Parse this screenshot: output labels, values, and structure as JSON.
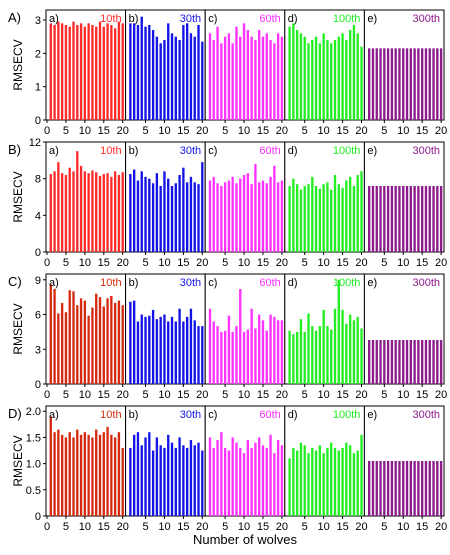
{
  "xlabel": "Number of wolves",
  "ylabel": "RMSECV",
  "chart_data": [
    {
      "type": "bar",
      "row_label": "A)",
      "ylabel": "RMSECV",
      "ylim": [
        0,
        3.3
      ],
      "yticks": [
        0,
        1,
        2,
        3
      ],
      "x": [
        1,
        2,
        3,
        4,
        5,
        6,
        7,
        8,
        9,
        10,
        11,
        12,
        13,
        14,
        15,
        16,
        17,
        18,
        19,
        20
      ],
      "xticks": [
        0,
        5,
        10,
        15,
        20
      ],
      "panels": [
        {
          "label": "a)",
          "iteration": "10th",
          "color": "#ff2a2a",
          "values": [
            2.9,
            2.85,
            2.95,
            2.9,
            2.85,
            2.8,
            2.95,
            2.85,
            2.9,
            2.8,
            2.9,
            2.85,
            2.8,
            2.95,
            2.8,
            2.9,
            2.85,
            2.75,
            2.95,
            2.9
          ]
        },
        {
          "label": "b)",
          "iteration": "30th",
          "color": "#1414e6",
          "values": [
            2.9,
            2.9,
            2.85,
            3.1,
            2.8,
            2.85,
            2.7,
            2.5,
            2.3,
            2.4,
            2.9,
            2.6,
            2.5,
            2.4,
            2.85,
            2.9,
            2.6,
            2.5,
            2.85,
            2.35
          ]
        },
        {
          "label": "c)",
          "iteration": "60th",
          "color": "#ff33ff",
          "values": [
            2.6,
            2.4,
            2.8,
            2.3,
            2.5,
            2.6,
            2.3,
            2.8,
            2.5,
            2.9,
            2.7,
            2.5,
            2.4,
            2.7,
            2.5,
            2.6,
            2.4,
            2.3,
            2.6,
            2.5
          ]
        },
        {
          "label": "d)",
          "iteration": "100th",
          "color": "#22ee22",
          "values": [
            2.8,
            2.9,
            2.7,
            2.6,
            2.5,
            2.3,
            2.4,
            2.5,
            2.3,
            2.6,
            2.4,
            2.3,
            2.4,
            2.5,
            2.6,
            2.4,
            2.7,
            2.85,
            2.6,
            2.2
          ]
        },
        {
          "label": "e)",
          "iteration": "300th",
          "color": "#8b1a8b",
          "values": [
            2.15,
            2.15,
            2.15,
            2.15,
            2.15,
            2.15,
            2.15,
            2.15,
            2.15,
            2.15,
            2.15,
            2.15,
            2.15,
            2.15,
            2.15,
            2.15,
            2.15,
            2.15,
            2.15,
            2.15
          ]
        }
      ]
    },
    {
      "type": "bar",
      "row_label": "B)",
      "ylabel": "RMSECV",
      "ylim": [
        0,
        12
      ],
      "yticks": [
        0,
        4,
        8,
        12
      ],
      "x": [
        1,
        2,
        3,
        4,
        5,
        6,
        7,
        8,
        9,
        10,
        11,
        12,
        13,
        14,
        15,
        16,
        17,
        18,
        19,
        20
      ],
      "xticks": [
        0,
        5,
        10,
        15,
        20
      ],
      "panels": [
        {
          "label": "a)",
          "iteration": "10th",
          "color": "#ff2a2a",
          "values": [
            8.5,
            8.8,
            9.8,
            8.6,
            8.4,
            9.2,
            8.8,
            11.0,
            9.4,
            8.8,
            8.6,
            8.9,
            8.7,
            8.3,
            8.5,
            8.6,
            8.2,
            8.8,
            8.4,
            8.7
          ]
        },
        {
          "label": "b)",
          "iteration": "30th",
          "color": "#1414e6",
          "values": [
            8.5,
            9.0,
            7.8,
            8.8,
            8.2,
            8.0,
            7.5,
            8.6,
            7.2,
            8.8,
            8.0,
            7.2,
            7.5,
            8.4,
            9.2,
            7.6,
            8.2,
            7.6,
            7.4,
            9.8
          ]
        },
        {
          "label": "c)",
          "iteration": "60th",
          "color": "#ff33ff",
          "values": [
            7.8,
            8.2,
            7.5,
            7.2,
            7.6,
            7.8,
            8.2,
            7.5,
            8.0,
            8.4,
            8.6,
            7.4,
            9.6,
            7.6,
            7.8,
            7.5,
            8.2,
            9.4,
            7.6,
            7.8
          ]
        },
        {
          "label": "d)",
          "iteration": "100th",
          "color": "#22ee22",
          "values": [
            7.2,
            8.0,
            7.4,
            6.8,
            7.2,
            7.4,
            8.2,
            7.2,
            6.9,
            7.4,
            7.6,
            6.8,
            8.4,
            7.4,
            7.0,
            7.8,
            8.2,
            7.2,
            8.4,
            8.8
          ]
        },
        {
          "label": "e)",
          "iteration": "300th",
          "color": "#8b1a8b",
          "values": [
            7.2,
            7.2,
            7.2,
            7.2,
            7.2,
            7.2,
            7.2,
            7.2,
            7.2,
            7.2,
            7.2,
            7.2,
            7.2,
            7.2,
            7.2,
            7.2,
            7.2,
            7.2,
            7.2,
            7.2
          ]
        }
      ]
    },
    {
      "type": "bar",
      "row_label": "C)",
      "ylabel": "RMSECV",
      "ylim": [
        0,
        9.5
      ],
      "yticks": [
        0,
        3,
        6,
        9
      ],
      "x": [
        1,
        2,
        3,
        4,
        5,
        6,
        7,
        8,
        9,
        10,
        11,
        12,
        13,
        14,
        15,
        16,
        17,
        18,
        19,
        20
      ],
      "xticks": [
        0,
        5,
        10,
        15,
        20
      ],
      "panels": [
        {
          "label": "a)",
          "iteration": "10th",
          "color": "#d42a10",
          "values": [
            8.6,
            8.2,
            6.1,
            7.0,
            6.2,
            8.1,
            8.0,
            6.8,
            7.4,
            7.2,
            5.9,
            6.6,
            7.8,
            7.5,
            6.7,
            7.4,
            7.6,
            7.0,
            7.2,
            6.8
          ]
        },
        {
          "label": "b)",
          "iteration": "30th",
          "color": "#1414e6",
          "values": [
            7.1,
            7.2,
            5.4,
            6.0,
            5.8,
            5.9,
            6.4,
            5.6,
            5.8,
            6.0,
            5.4,
            5.8,
            5.4,
            6.5,
            5.4,
            5.8,
            6.5,
            5.5,
            5.0,
            5.0
          ]
        },
        {
          "label": "c)",
          "iteration": "60th",
          "color": "#ff33ff",
          "values": [
            6.5,
            5.4,
            5.0,
            4.5,
            4.6,
            5.9,
            4.5,
            5.0,
            8.2,
            4.5,
            4.7,
            6.5,
            4.8,
            6.0,
            5.5,
            4.6,
            6.0,
            5.8,
            5.5,
            5.5
          ]
        },
        {
          "label": "d)",
          "iteration": "100th",
          "color": "#22ee22",
          "values": [
            4.6,
            4.3,
            4.5,
            5.6,
            4.5,
            6.1,
            5.0,
            4.6,
            5.0,
            6.4,
            5.0,
            4.7,
            6.5,
            9.0,
            6.4,
            5.2,
            6.0,
            5.5,
            5.8,
            4.8
          ]
        },
        {
          "label": "e)",
          "iteration": "300th",
          "color": "#8b1a8b",
          "values": [
            3.8,
            3.8,
            3.8,
            3.8,
            3.8,
            3.8,
            3.8,
            3.8,
            3.8,
            3.8,
            3.8,
            3.8,
            3.8,
            3.8,
            3.8,
            3.8,
            3.8,
            3.8,
            3.8,
            3.8
          ]
        }
      ]
    },
    {
      "type": "bar",
      "row_label": "D)",
      "ylabel": "RMSECV",
      "ylim": [
        0,
        2.1
      ],
      "yticks": [
        0,
        0.5,
        1.0,
        1.5,
        2.0
      ],
      "ytick_labels": [
        "0",
        "0.5",
        "1.0",
        "1.5",
        "2.0"
      ],
      "x": [
        1,
        2,
        3,
        4,
        5,
        6,
        7,
        8,
        9,
        10,
        11,
        12,
        13,
        14,
        15,
        16,
        17,
        18,
        19,
        20
      ],
      "xticks": [
        0,
        5,
        10,
        15,
        20
      ],
      "panels": [
        {
          "label": "a)",
          "iteration": "10th",
          "color": "#d42a10",
          "values": [
            1.9,
            1.6,
            1.65,
            1.55,
            1.5,
            1.6,
            1.5,
            1.65,
            1.55,
            1.6,
            1.55,
            1.5,
            1.65,
            1.55,
            1.6,
            1.7,
            1.55,
            1.5,
            1.6,
            1.3
          ]
        },
        {
          "label": "b)",
          "iteration": "30th",
          "color": "#1414e6",
          "values": [
            1.3,
            1.55,
            1.6,
            1.35,
            1.5,
            1.6,
            1.25,
            1.5,
            1.35,
            1.3,
            1.55,
            1.4,
            1.3,
            1.5,
            1.35,
            1.3,
            1.45,
            1.35,
            1.4,
            1.25
          ]
        },
        {
          "label": "c)",
          "iteration": "60th",
          "color": "#ff33ff",
          "values": [
            1.5,
            1.3,
            1.45,
            1.6,
            1.3,
            1.25,
            1.5,
            1.4,
            1.3,
            1.2,
            1.45,
            1.3,
            1.4,
            1.5,
            1.35,
            1.3,
            1.55,
            1.2,
            1.45,
            1.35
          ]
        },
        {
          "label": "d)",
          "iteration": "100th",
          "color": "#22ee22",
          "values": [
            1.1,
            1.3,
            1.25,
            1.4,
            1.35,
            1.2,
            1.3,
            1.25,
            1.35,
            1.2,
            1.3,
            1.4,
            1.3,
            1.25,
            1.3,
            1.4,
            1.35,
            1.2,
            1.25,
            1.55
          ]
        },
        {
          "label": "e)",
          "iteration": "300th",
          "color": "#8b1a8b",
          "values": [
            1.05,
            1.05,
            1.05,
            1.05,
            1.05,
            1.05,
            1.05,
            1.05,
            1.05,
            1.05,
            1.05,
            1.05,
            1.05,
            1.05,
            1.05,
            1.05,
            1.05,
            1.05,
            1.05,
            1.05
          ]
        }
      ]
    }
  ]
}
